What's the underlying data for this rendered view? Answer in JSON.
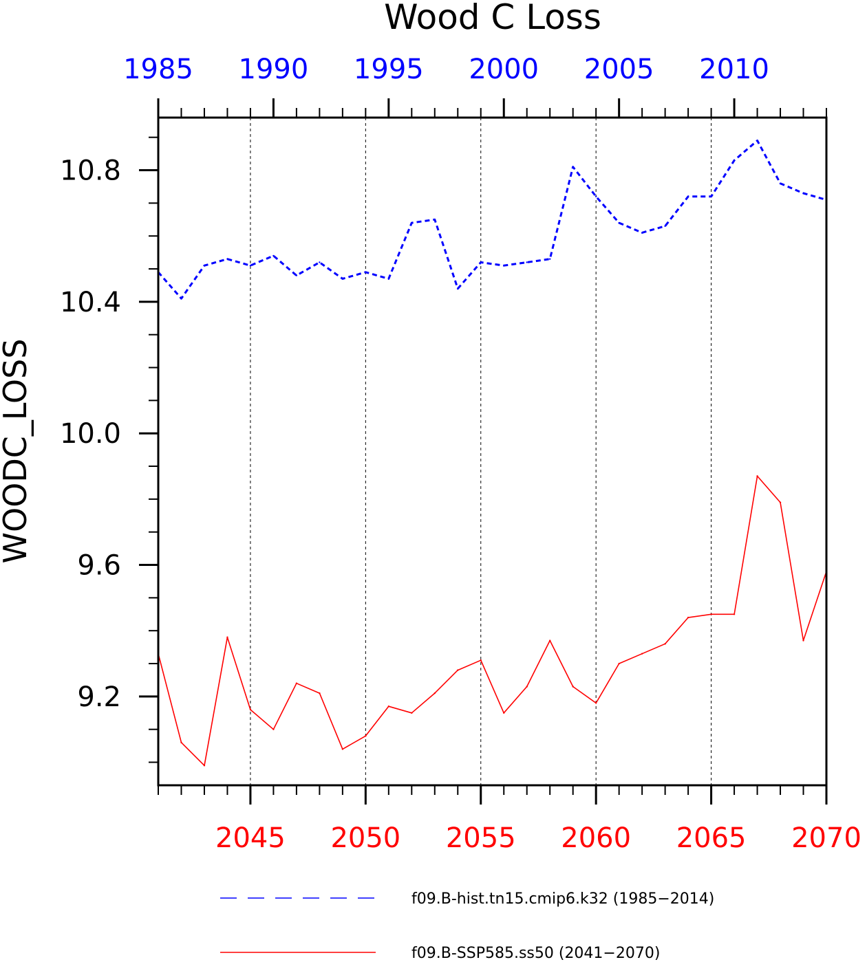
{
  "chart_data": {
    "type": "line",
    "title": "Wood C Loss",
    "ylabel": "WOODC_LOSS",
    "ylim": [
      8.93,
      10.96
    ],
    "yticks": [
      9.2,
      9.6,
      10.0,
      10.4,
      10.8
    ],
    "ytick_labels": [
      "9.2",
      "9.6",
      "10.0",
      "10.4",
      "10.8"
    ],
    "y_minor_step": 0.1,
    "grid": "vertical dashed at bottom-axis major ticks",
    "x_bottom": {
      "range": [
        2041,
        2070
      ],
      "ticks": [
        2045,
        2050,
        2055,
        2060,
        2065,
        2070
      ],
      "tick_labels": [
        "2045",
        "2050",
        "2055",
        "2060",
        "2065",
        "2070"
      ],
      "color": "#ff0000"
    },
    "x_top": {
      "range": [
        1985,
        2014
      ],
      "ticks": [
        1985,
        1990,
        1995,
        2000,
        2005,
        2010
      ],
      "tick_labels": [
        "1985",
        "1990",
        "1995",
        "2000",
        "2005",
        "2010"
      ],
      "color": "#0000ff"
    },
    "legend_position": "bottom",
    "series": [
      {
        "name": "f09.B-hist.tn15.cmip6.k32 (1985−2014)",
        "axis": "top",
        "color": "#0000ff",
        "dash": "dashed",
        "x": [
          1985,
          1986,
          1987,
          1988,
          1989,
          1990,
          1991,
          1992,
          1993,
          1994,
          1995,
          1996,
          1997,
          1998,
          1999,
          2000,
          2001,
          2002,
          2003,
          2004,
          2005,
          2006,
          2007,
          2008,
          2009,
          2010,
          2011,
          2012,
          2013,
          2014
        ],
        "values": [
          10.49,
          10.41,
          10.51,
          10.53,
          10.51,
          10.54,
          10.48,
          10.52,
          10.47,
          10.49,
          10.47,
          10.64,
          10.65,
          10.44,
          10.52,
          10.51,
          10.52,
          10.53,
          10.81,
          10.72,
          10.64,
          10.61,
          10.63,
          10.72,
          10.72,
          10.83,
          10.89,
          10.76,
          10.73,
          10.71
        ]
      },
      {
        "name": "f09.B-SSP585.ss50 (2041−2070)",
        "axis": "bottom",
        "color": "#ff0000",
        "dash": "solid",
        "x": [
          2041,
          2042,
          2043,
          2044,
          2045,
          2046,
          2047,
          2048,
          2049,
          2050,
          2051,
          2052,
          2053,
          2054,
          2055,
          2056,
          2057,
          2058,
          2059,
          2060,
          2061,
          2062,
          2063,
          2064,
          2065,
          2066,
          2067,
          2068,
          2069,
          2070
        ],
        "values": [
          9.33,
          9.06,
          8.99,
          9.38,
          9.16,
          9.1,
          9.24,
          9.21,
          9.04,
          9.08,
          9.17,
          9.15,
          9.21,
          9.28,
          9.31,
          9.15,
          9.23,
          9.37,
          9.23,
          9.18,
          9.3,
          9.33,
          9.36,
          9.44,
          9.45,
          9.45,
          9.87,
          9.79,
          9.37,
          9.58
        ]
      }
    ]
  }
}
